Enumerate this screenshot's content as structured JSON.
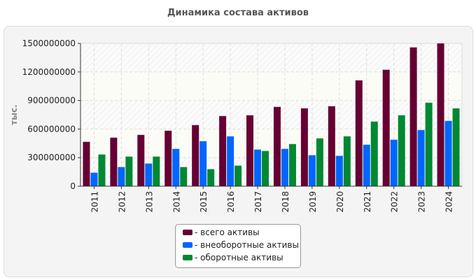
{
  "chart_data": {
    "type": "bar",
    "title": "Динамика состава активов",
    "ylabel": "тыс.",
    "xlabel": "",
    "ylim": [
      0,
      1500000000
    ],
    "yticks": [
      "0",
      "300000000",
      "600000000",
      "900000000",
      "1200000000",
      "1500000000"
    ],
    "grid": true,
    "legend_position": "bottom-center",
    "categories": [
      "2011",
      "2012",
      "2013",
      "2014",
      "2015",
      "2016",
      "2017",
      "2018",
      "2019",
      "2020",
      "2021",
      "2022",
      "2023",
      "2024"
    ],
    "series": [
      {
        "name": "- всего активы",
        "color": "#660033",
        "values": [
          466000000,
          510000000,
          539000000,
          583000000,
          642000000,
          737000000,
          745000000,
          833000000,
          818000000,
          840000000,
          1112000000,
          1223000000,
          1458000000,
          1500000000
        ]
      },
      {
        "name": "- внеоборотные активы",
        "color": "#0066ff",
        "values": [
          142000000,
          201000000,
          238000000,
          392000000,
          473000000,
          524000000,
          385000000,
          392000000,
          326000000,
          319000000,
          436000000,
          488000000,
          590000000,
          686000000
        ]
      },
      {
        "name": "- оборотные активы",
        "color": "#008833",
        "values": [
          333000000,
          311000000,
          311000000,
          201000000,
          179000000,
          216000000,
          370000000,
          443000000,
          502000000,
          524000000,
          679000000,
          745000000,
          877000000,
          818000000
        ]
      }
    ]
  }
}
